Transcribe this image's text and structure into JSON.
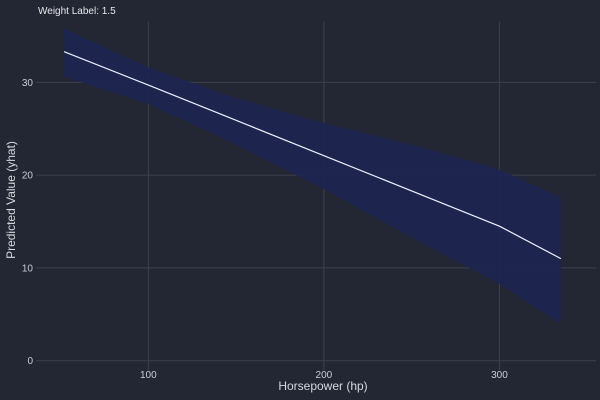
{
  "facet_label": "Weight Label: 1.5",
  "colors": {
    "background": "#232733",
    "grid": "#3b404d",
    "ribbon": "#1e2550",
    "line": "#eef0ff"
  },
  "chart_data": {
    "type": "line",
    "xlabel": "Horsepower (hp)",
    "ylabel": "Predicted Value (yhat)",
    "xlim": [
      36,
      355
    ],
    "ylim": [
      -1,
      36.5
    ],
    "x_ticks": [
      100,
      200,
      300
    ],
    "y_ticks": [
      0,
      10,
      20,
      30
    ],
    "grid": true,
    "series": [
      {
        "x": [
          52,
          100,
          150,
          200,
          250,
          300,
          335
        ],
        "y": [
          33.3,
          29.7,
          25.9,
          22.1,
          18.3,
          14.5,
          11.0
        ]
      }
    ],
    "confidence_band": {
      "x": [
        52,
        100,
        150,
        200,
        250,
        300,
        335
      ],
      "upper": [
        35.8,
        31.6,
        28.3,
        25.6,
        23.3,
        20.6,
        17.6
      ],
      "lower": [
        30.6,
        27.7,
        23.3,
        18.5,
        13.3,
        8.3,
        4.0
      ]
    }
  }
}
